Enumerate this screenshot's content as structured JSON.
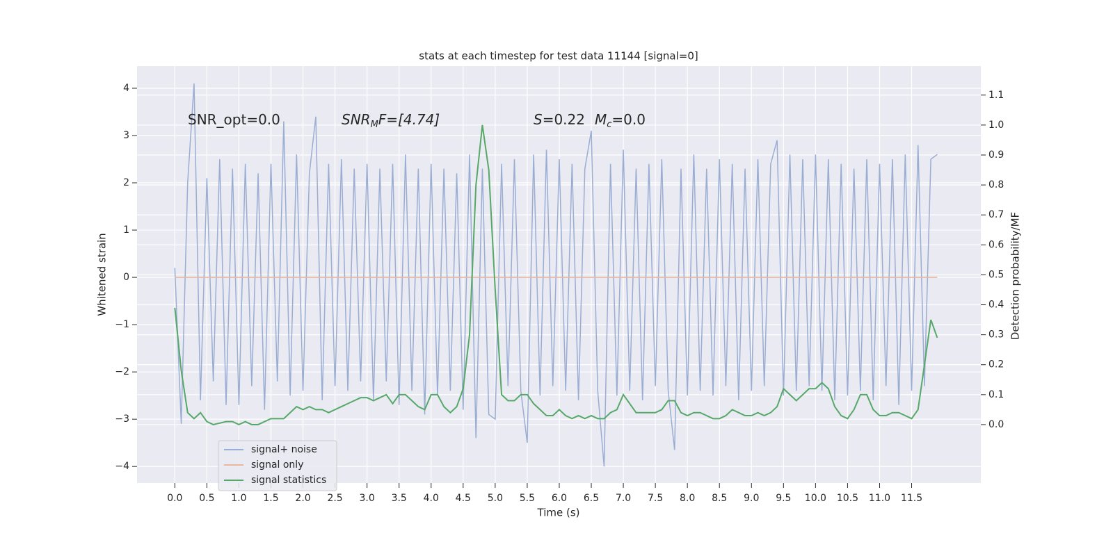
{
  "chart_data": {
    "type": "line",
    "title": "stats at each timestep for test data 11144 [signal=0]",
    "xlabel": "Time (s)",
    "ylabel": "Whitened strain",
    "y2label": "Detection probability/MF",
    "annotations": [
      [
        "SNR_opt=0.0"
      ],
      [
        "SNR",
        "M",
        "F=[4.74]"
      ],
      [
        "S",
        "=0.22",
        "M",
        "c",
        "=0.0"
      ]
    ],
    "x": [
      0,
      0.1,
      0.2,
      0.3,
      0.4,
      0.5,
      0.6,
      0.7,
      0.8,
      0.9,
      1.0,
      1.1,
      1.2,
      1.3,
      1.4,
      1.5,
      1.6,
      1.7,
      1.8,
      1.9,
      2.0,
      2.1,
      2.2,
      2.3,
      2.4,
      2.5,
      2.6,
      2.7,
      2.8,
      2.9,
      3.0,
      3.1,
      3.2,
      3.3,
      3.4,
      3.5,
      3.6,
      3.7,
      3.8,
      3.9,
      4.0,
      4.1,
      4.2,
      4.3,
      4.4,
      4.5,
      4.6,
      4.7,
      4.8,
      4.9,
      5.0,
      5.1,
      5.2,
      5.3,
      5.4,
      5.5,
      5.6,
      5.7,
      5.8,
      5.9,
      6.0,
      6.1,
      6.2,
      6.3,
      6.4,
      6.5,
      6.6,
      6.7,
      6.8,
      6.9,
      7.0,
      7.1,
      7.2,
      7.3,
      7.4,
      7.5,
      7.6,
      7.7,
      7.8,
      7.9,
      8.0,
      8.1,
      8.2,
      8.3,
      8.4,
      8.5,
      8.6,
      8.7,
      8.8,
      8.9,
      9.0,
      9.1,
      9.2,
      9.3,
      9.4,
      9.5,
      9.6,
      9.7,
      9.8,
      9.9,
      10.0,
      10.1,
      10.2,
      10.3,
      10.4,
      10.5,
      10.6,
      10.7,
      10.8,
      10.9,
      11.0,
      11.1,
      11.2,
      11.3,
      11.4,
      11.5,
      11.6,
      11.7,
      11.8,
      11.9
    ],
    "series": [
      {
        "name": "signal+ noise",
        "color": "#9aadd3",
        "values": [
          0.2,
          -3.1,
          2.0,
          4.1,
          -2.6,
          2.1,
          -2.2,
          2.5,
          -2.7,
          2.3,
          -2.7,
          2.4,
          -2.3,
          2.2,
          -2.8,
          2.4,
          -2.2,
          3.3,
          -2.5,
          2.6,
          -2.4,
          2.2,
          3.4,
          -2.6,
          2.4,
          -2.3,
          2.5,
          -2.4,
          2.3,
          -2.2,
          2.4,
          -2.6,
          2.3,
          -2.2,
          2.4,
          -2.7,
          2.6,
          -2.4,
          2.3,
          -2.9,
          2.4,
          -2.5,
          2.3,
          -2.4,
          2.2,
          -2.8,
          2.6,
          -3.4,
          2.3,
          -2.9,
          -3.0,
          2.4,
          -2.3,
          2.5,
          -2.4,
          -3.5,
          2.6,
          -2.5,
          2.7,
          -2.3,
          2.5,
          -2.4,
          2.4,
          -2.6,
          2.3,
          3.1,
          -2.4,
          -4.0,
          2.4,
          -2.5,
          2.7,
          -2.4,
          2.3,
          -2.6,
          2.4,
          -2.3,
          2.5,
          -2.4,
          -3.65,
          2.3,
          -2.5,
          2.6,
          -2.4,
          2.3,
          -2.5,
          2.5,
          -2.3,
          2.4,
          -2.6,
          2.3,
          -2.4,
          2.5,
          -2.3,
          2.4,
          2.9,
          -2.5,
          2.6,
          -2.4,
          2.5,
          -2.3,
          2.6,
          -2.4,
          2.5,
          -2.6,
          2.4,
          -2.5,
          2.3,
          -2.4,
          2.5,
          -2.6,
          2.4,
          -2.3,
          2.5,
          -2.7,
          2.6,
          -2.4,
          2.8,
          -2.3,
          2.5,
          2.6
        ]
      },
      {
        "name": "signal only",
        "color": "#e8b7a0",
        "x": [
          0,
          11.9
        ],
        "values": [
          0,
          0
        ]
      },
      {
        "name": "signal statistics",
        "color": "#55a868",
        "axis": "y2",
        "values": [
          0.39,
          0.18,
          0.04,
          0.02,
          0.04,
          0.01,
          0.0,
          0.005,
          0.01,
          0.01,
          0.0,
          0.01,
          0.0,
          0.0,
          0.01,
          0.02,
          0.02,
          0.02,
          0.04,
          0.06,
          0.05,
          0.06,
          0.05,
          0.05,
          0.04,
          0.05,
          0.06,
          0.07,
          0.08,
          0.09,
          0.09,
          0.08,
          0.09,
          0.1,
          0.07,
          0.1,
          0.1,
          0.08,
          0.06,
          0.05,
          0.1,
          0.1,
          0.06,
          0.04,
          0.06,
          0.12,
          0.3,
          0.8,
          1.0,
          0.85,
          0.45,
          0.1,
          0.08,
          0.08,
          0.1,
          0.1,
          0.07,
          0.05,
          0.03,
          0.03,
          0.05,
          0.03,
          0.02,
          0.03,
          0.02,
          0.03,
          0.02,
          0.02,
          0.04,
          0.05,
          0.1,
          0.07,
          0.04,
          0.04,
          0.04,
          0.04,
          0.05,
          0.08,
          0.08,
          0.04,
          0.03,
          0.04,
          0.04,
          0.03,
          0.02,
          0.02,
          0.03,
          0.05,
          0.04,
          0.03,
          0.03,
          0.04,
          0.03,
          0.04,
          0.06,
          0.12,
          0.1,
          0.08,
          0.1,
          0.12,
          0.12,
          0.14,
          0.12,
          0.06,
          0.03,
          0.02,
          0.05,
          0.1,
          0.1,
          0.05,
          0.03,
          0.03,
          0.04,
          0.04,
          0.03,
          0.02,
          0.05,
          0.2,
          0.35,
          0.29
        ]
      }
    ],
    "xlim": [
      -0.59,
      12.58
    ],
    "xticks": [
      {
        "value": 0,
        "label": "0.0"
      },
      {
        "value": 0.5,
        "label": "0.5"
      },
      {
        "value": 1,
        "label": "1.0"
      },
      {
        "value": 1.5,
        "label": "1.5"
      },
      {
        "value": 2,
        "label": "2.0"
      },
      {
        "value": 2.5,
        "label": "2.5"
      },
      {
        "value": 3,
        "label": "3.0"
      },
      {
        "value": 3.5,
        "label": "3.5"
      },
      {
        "value": 4,
        "label": "4.0"
      },
      {
        "value": 4.5,
        "label": "4.5"
      },
      {
        "value": 5,
        "label": "5.0"
      },
      {
        "value": 5.5,
        "label": "5.5"
      },
      {
        "value": 6,
        "label": "6.0"
      },
      {
        "value": 6.5,
        "label": "6.5"
      },
      {
        "value": 7,
        "label": "7.0"
      },
      {
        "value": 7.5,
        "label": "7.5"
      },
      {
        "value": 8,
        "label": "8.0"
      },
      {
        "value": 8.5,
        "label": "8.5"
      },
      {
        "value": 9,
        "label": "9.0"
      },
      {
        "value": 9.5,
        "label": "9.5"
      },
      {
        "value": 10,
        "label": "10.0"
      },
      {
        "value": 10.5,
        "label": "10.5"
      },
      {
        "value": 11,
        "label": "11.0"
      },
      {
        "value": 11.5,
        "label": "11.5"
      }
    ],
    "ylim": [
      -4.35,
      4.47
    ],
    "yticks": [
      {
        "value": -4,
        "label": "−4"
      },
      {
        "value": -3,
        "label": "−3"
      },
      {
        "value": -2,
        "label": "−2"
      },
      {
        "value": -1,
        "label": "−1"
      },
      0,
      1,
      2,
      3,
      4
    ],
    "y2lim": [
      -0.195,
      1.197
    ],
    "y2ticks": [
      {
        "value": 0,
        "label": "0.0"
      },
      {
        "value": 0.1,
        "label": "0.1"
      },
      {
        "value": 0.2,
        "label": "0.2"
      },
      {
        "value": 0.3,
        "label": "0.3"
      },
      {
        "value": 0.4,
        "label": "0.4"
      },
      {
        "value": 0.5,
        "label": "0.5"
      },
      {
        "value": 0.6,
        "label": "0.6"
      },
      {
        "value": 0.7,
        "label": "0.7"
      },
      {
        "value": 0.8,
        "label": "0.8"
      },
      {
        "value": 0.9,
        "label": "0.9"
      },
      {
        "value": 1.0,
        "label": "1.0"
      },
      {
        "value": 1.1,
        "label": "1.1"
      }
    ],
    "grid": true,
    "legend": "lower left"
  }
}
